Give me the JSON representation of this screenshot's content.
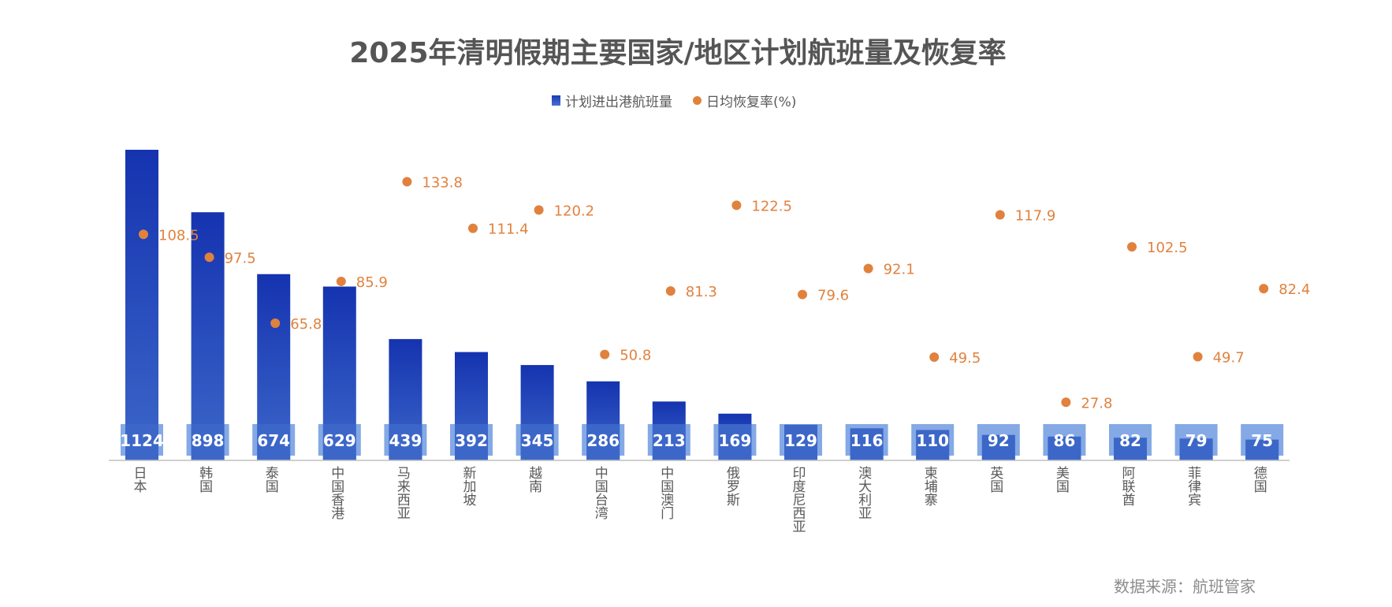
{
  "title": "2025年清明假期主要国家/地区计划航班量及恢复率",
  "legend": {
    "bar_label": "计划进出港航班量",
    "dot_label": "日均恢复率(%)"
  },
  "source": "数据来源：航班管家",
  "colors": {
    "bar_top": "#1533b0",
    "bar_bottom": "#3c67c9",
    "label_box": "#6f9ae0",
    "dot": "#e0823e",
    "axis": "#bfbfbf",
    "text": "#595959"
  },
  "chart_data": {
    "type": "bar",
    "title": "2025年清明假期主要国家/地区计划航班量及恢复率",
    "categories": [
      "日本",
      "韩国",
      "泰国",
      "中国香港",
      "马来西亚",
      "新加坡",
      "越南",
      "中国台湾",
      "中国澳门",
      "俄罗斯",
      "印度尼西亚",
      "澳大利亚",
      "柬埔寨",
      "英国",
      "美国",
      "阿联酋",
      "菲律宾",
      "德国"
    ],
    "series": [
      {
        "name": "计划进出港航班量",
        "type": "bar",
        "values": [
          1124,
          898,
          674,
          629,
          439,
          392,
          345,
          286,
          213,
          169,
          129,
          116,
          110,
          92,
          86,
          82,
          79,
          75
        ]
      },
      {
        "name": "日均恢复率(%)",
        "type": "scatter",
        "values": [
          108.5,
          97.5,
          65.8,
          85.9,
          133.8,
          111.4,
          120.2,
          50.8,
          81.3,
          122.5,
          79.6,
          92.1,
          49.5,
          117.9,
          27.8,
          102.5,
          49.7,
          82.4
        ]
      }
    ],
    "ylim_bars": [
      0,
      1124
    ],
    "ylim_rate": [
      0,
      150
    ],
    "xlabel": "",
    "ylabel": ""
  }
}
